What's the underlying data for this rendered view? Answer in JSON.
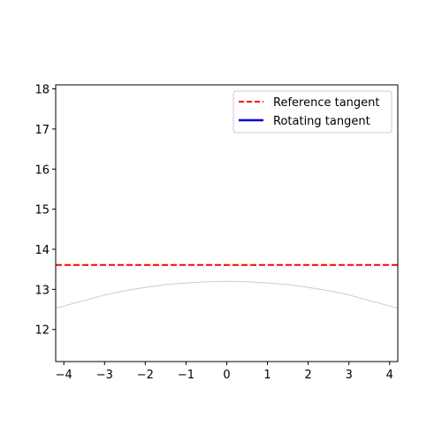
{
  "chart_data": {
    "type": "line",
    "title": "",
    "xlabel": "",
    "ylabel": "",
    "xlim": [
      -4.2,
      4.2
    ],
    "ylim": [
      11.2,
      18.1
    ],
    "xticks": [
      -4,
      -3,
      -2,
      -1,
      0,
      1,
      2,
      3,
      4
    ],
    "xtick_labels": [
      "−4",
      "−3",
      "−2",
      "−1",
      "0",
      "1",
      "2",
      "3",
      "4"
    ],
    "yticks": [
      12,
      13,
      14,
      15,
      16,
      17,
      18
    ],
    "ytick_labels": [
      "12",
      "13",
      "14",
      "15",
      "16",
      "17",
      "18"
    ],
    "grid": false,
    "legend_position": "top-right",
    "series": [
      {
        "name": "Reference tangent",
        "style": "dashed",
        "color": "#ff0000",
        "x": [
          -4.2,
          4.2
        ],
        "y": [
          13.61,
          13.61
        ]
      },
      {
        "name": "Rotating tangent",
        "style": "solid",
        "color": "#0000cc",
        "x": [],
        "y": []
      }
    ],
    "curve": {
      "color": "#cccccc",
      "x": [
        -4.2,
        -3.5,
        -3.0,
        -2.5,
        -2.0,
        -1.5,
        -1.0,
        -0.5,
        0.0,
        0.5,
        1.0,
        1.5,
        2.0,
        2.5,
        3.0,
        3.5,
        4.2
      ],
      "y": [
        12.53,
        12.72,
        12.86,
        12.97,
        13.05,
        13.12,
        13.16,
        13.19,
        13.2,
        13.19,
        13.16,
        13.12,
        13.05,
        12.97,
        12.86,
        12.72,
        12.53
      ]
    }
  }
}
